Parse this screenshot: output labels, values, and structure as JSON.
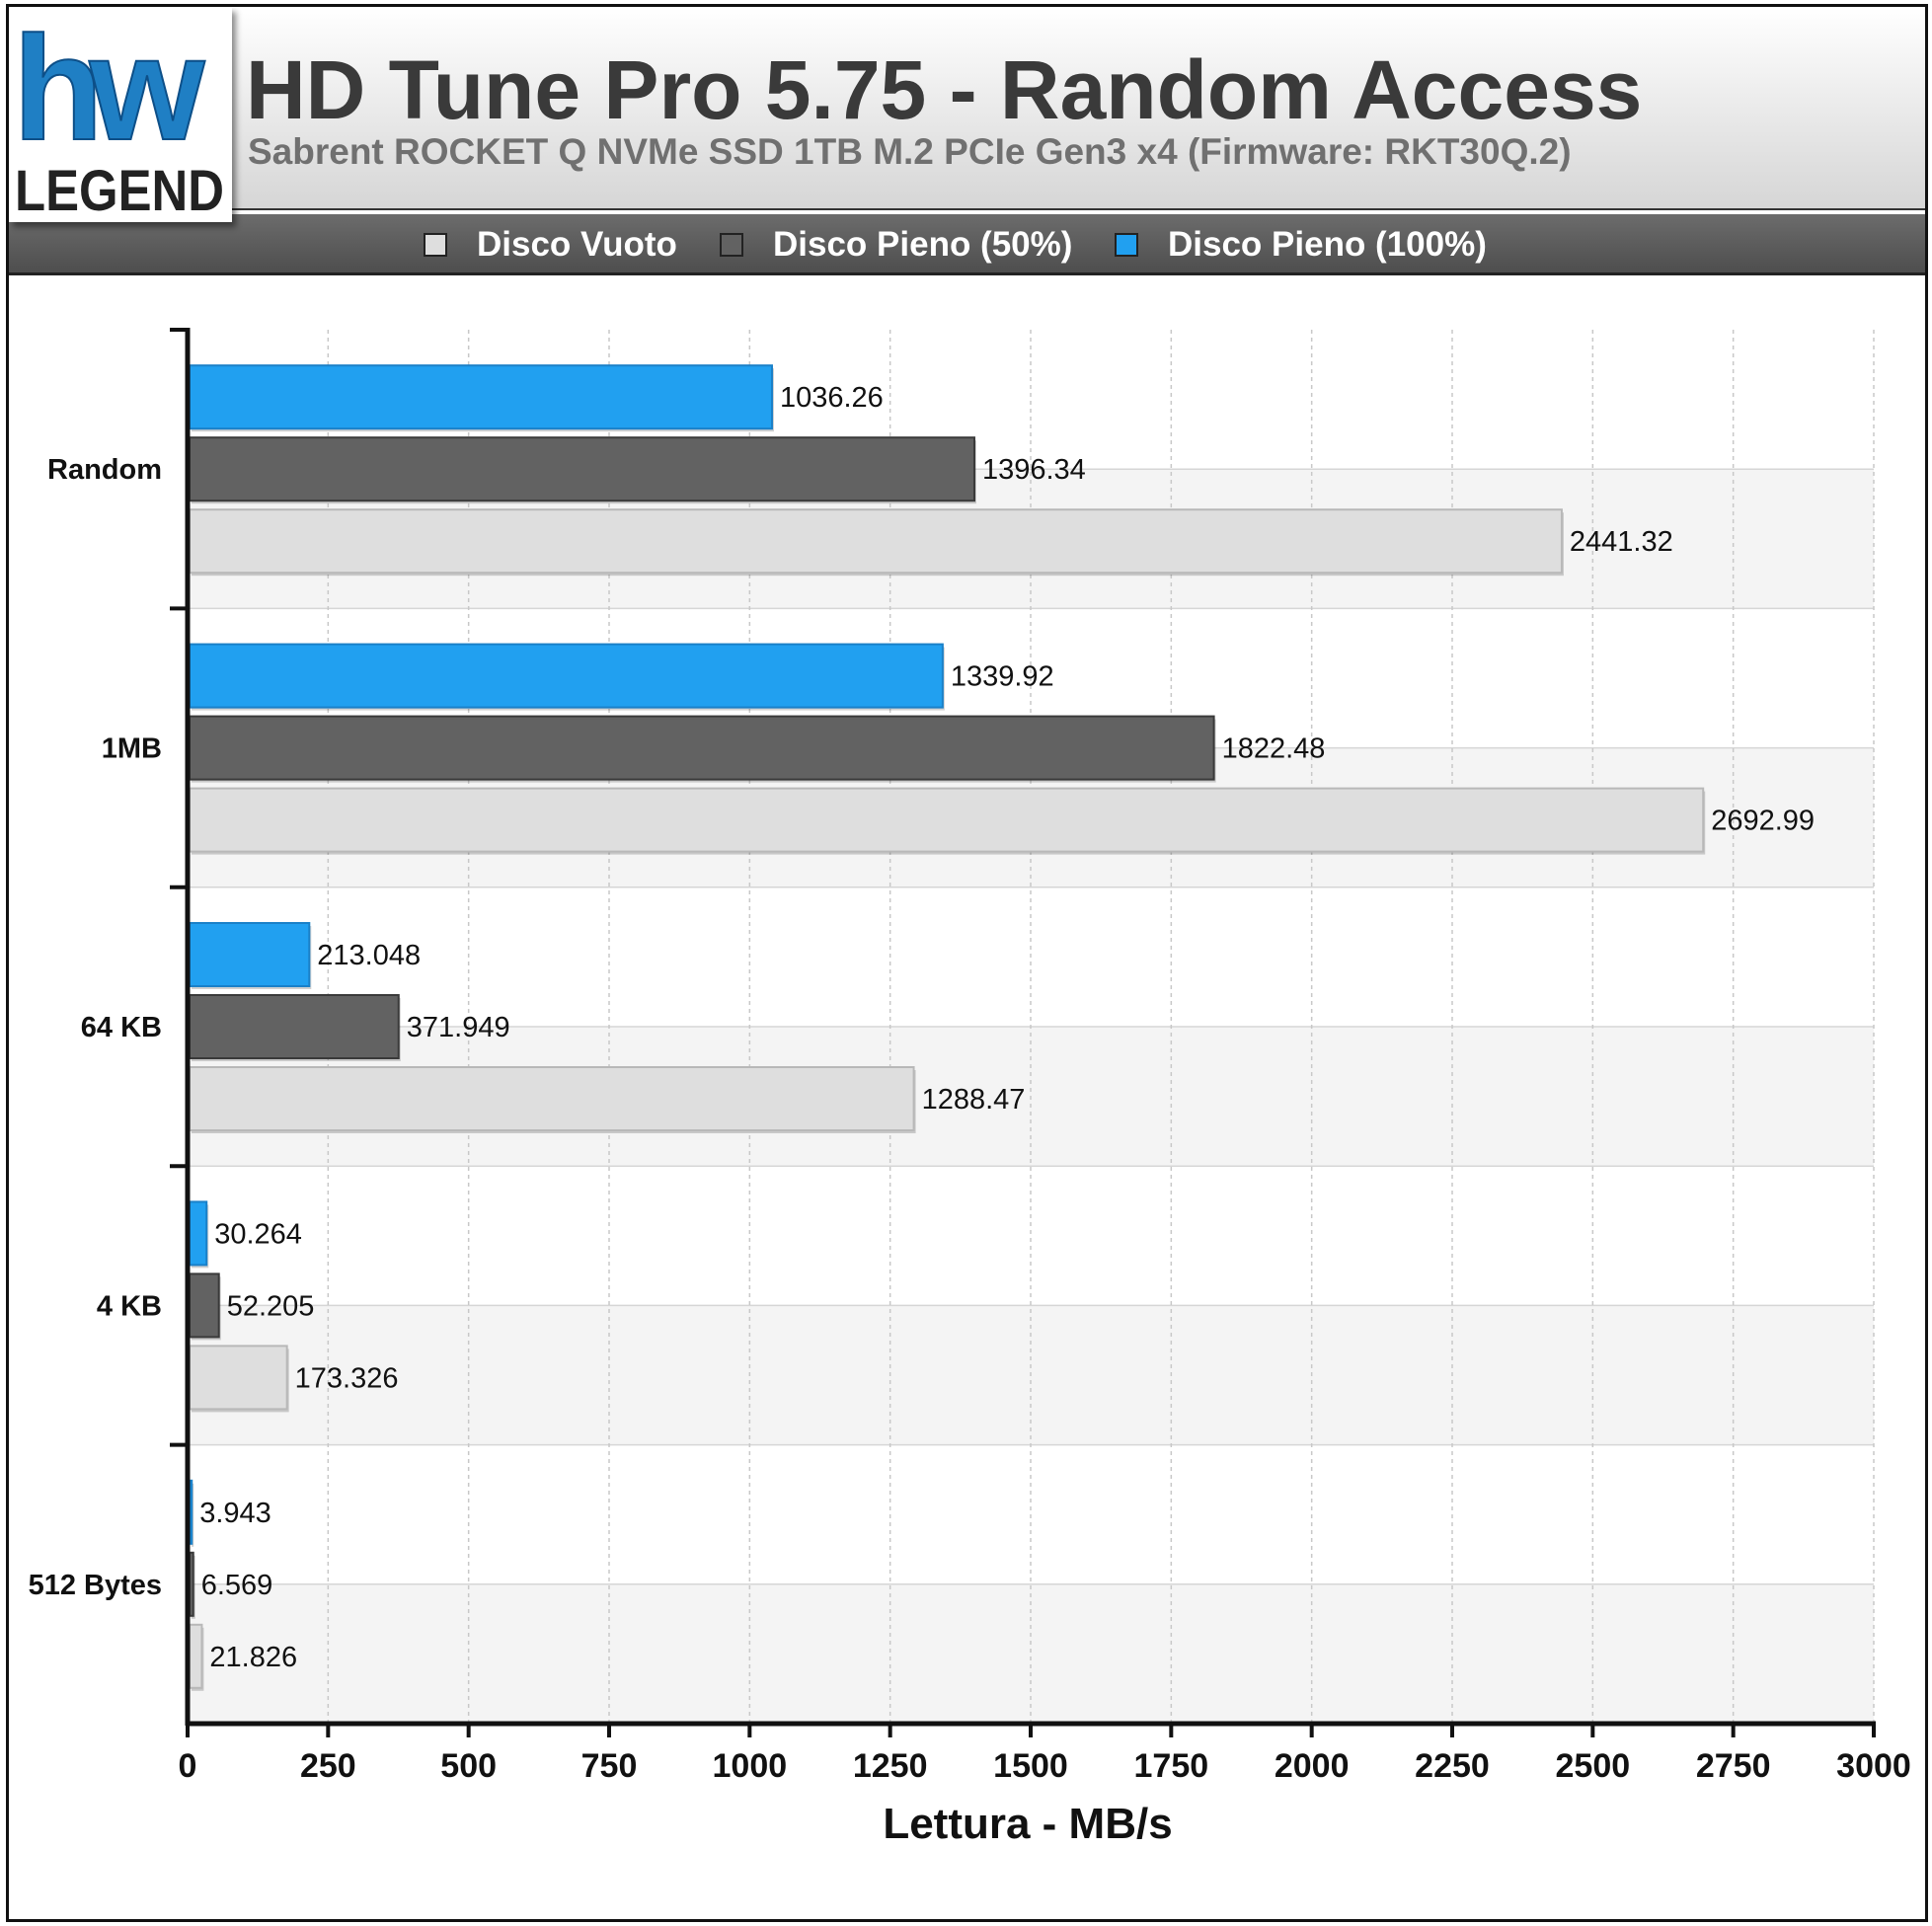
{
  "header": {
    "title": "HD Tune Pro 5.75 - Random Access",
    "subtitle": "Sabrent ROCKET Q NVMe SSD 1TB M.2 PCIe Gen3 x4 (Firmware: RKT30Q.2)"
  },
  "logo": {
    "top_text": "hw",
    "bottom_text": "LEGEND",
    "accent_color": "#1f7fc4"
  },
  "colors": {
    "series_vuoto": "#dedede",
    "series_pieno50": "#626262",
    "series_pieno100": "#21a0f0",
    "grid": "#c8c8c8",
    "band": "#f4f4f4"
  },
  "chart_data": {
    "type": "bar",
    "orientation": "horizontal",
    "categories": [
      "Random",
      "1MB",
      "64 KB",
      "4 KB",
      "512 Bytes"
    ],
    "series": [
      {
        "name": "Disco Vuoto",
        "color": "#dedede",
        "values": [
          2441.32,
          2692.99,
          1288.47,
          173.326,
          21.826
        ]
      },
      {
        "name": "Disco Pieno (50%)",
        "color": "#626262",
        "values": [
          1396.34,
          1822.48,
          371.949,
          52.205,
          6.569
        ]
      },
      {
        "name": "Disco Pieno (100%)",
        "color": "#21a0f0",
        "values": [
          1036.26,
          1339.92,
          213.048,
          30.264,
          3.943
        ]
      }
    ],
    "value_labels": [
      [
        "2441.32",
        "2692.99",
        "1288.47",
        "173.326",
        "21.826"
      ],
      [
        "1396.34",
        "1822.48",
        "371.949",
        "52.205",
        "6.569"
      ],
      [
        "1036.26",
        "1339.92",
        "213.048",
        "30.264",
        "3.943"
      ]
    ],
    "xlabel": "Lettura - MB/s",
    "ylabel": "",
    "xlim": [
      0,
      3000
    ],
    "xticks": [
      0,
      250,
      500,
      750,
      1000,
      1250,
      1500,
      1750,
      2000,
      2250,
      2500,
      2750,
      3000
    ],
    "grid": true,
    "legend_position": "top"
  }
}
